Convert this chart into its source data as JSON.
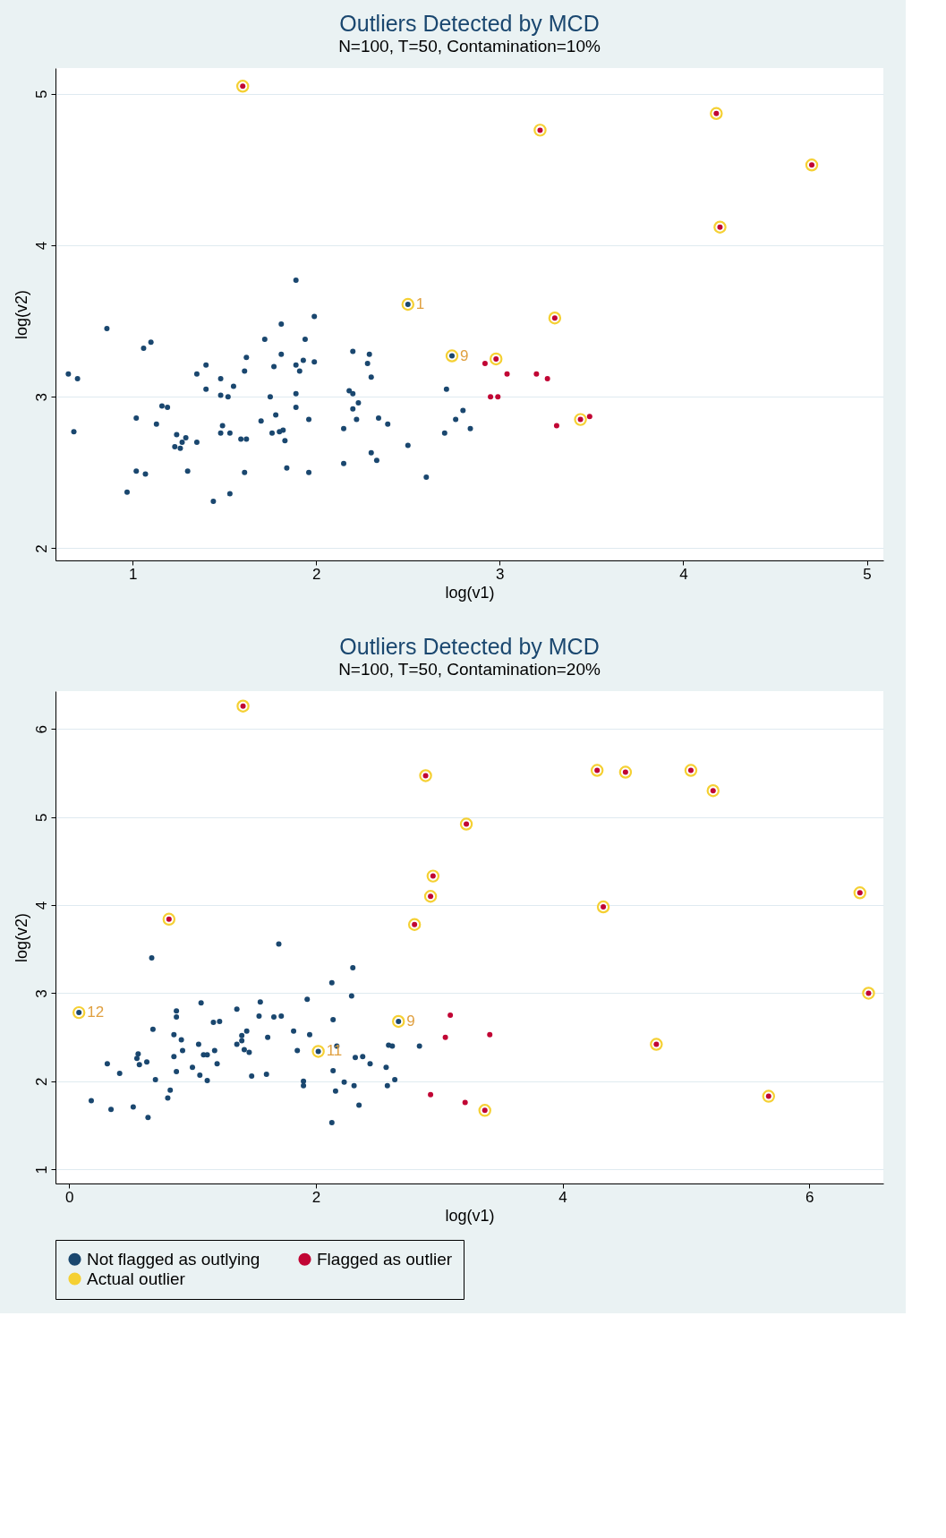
{
  "chart_data": [
    {
      "type": "scatter",
      "title": "Outliers Detected by MCD",
      "subtitle": "N=100, T=50, Contamination=10%",
      "xlabel": "log(v1)",
      "ylabel": "log(v2)",
      "xlim": [
        0.58,
        5.09
      ],
      "ylim": [
        1.92,
        5.17
      ],
      "xticks": [
        1,
        2,
        3,
        4,
        5
      ],
      "yticks": [
        2,
        3,
        4,
        5
      ],
      "grid": "y",
      "marker": "circle",
      "series": [
        {
          "color": "#1a476f",
          "x": [
            0.65,
            0.7,
            0.68,
            0.86,
            1.06,
            1.1,
            1.02,
            1.02,
            1.07,
            0.97,
            1.13,
            1.16,
            1.19,
            1.24,
            1.29,
            1.27,
            1.23,
            1.26,
            1.35,
            1.3,
            1.35,
            1.4,
            1.4,
            1.48,
            1.48,
            1.52,
            1.55,
            1.49,
            1.48,
            1.53,
            1.44,
            1.53,
            1.59,
            1.62,
            1.61,
            1.61,
            1.62,
            1.72,
            1.81,
            1.89,
            1.99,
            1.94,
            1.81,
            1.77,
            1.89,
            1.93,
            1.91,
            1.99,
            1.75,
            1.89,
            1.89,
            1.78,
            1.7,
            1.76,
            1.8,
            1.82,
            1.83,
            1.96,
            1.84,
            1.96,
            2.2,
            2.29,
            2.28,
            2.3,
            2.18,
            2.2,
            2.23,
            2.2,
            2.22,
            2.15,
            2.34,
            2.39,
            2.3,
            2.33,
            2.15,
            2.5,
            2.6,
            2.71,
            2.7,
            2.76,
            2.8,
            2.84,
            2.5,
            2.74
          ],
          "values": [
            3.15,
            3.12,
            2.77,
            3.45,
            3.32,
            3.36,
            2.86,
            2.51,
            2.49,
            2.37,
            2.82,
            2.94,
            2.93,
            2.75,
            2.73,
            2.7,
            2.67,
            2.66,
            2.7,
            2.51,
            3.15,
            3.21,
            3.05,
            3.12,
            3.01,
            3.0,
            3.07,
            2.81,
            2.76,
            2.76,
            2.31,
            2.36,
            2.72,
            2.72,
            2.5,
            3.17,
            3.26,
            3.38,
            3.48,
            3.77,
            3.53,
            3.38,
            3.28,
            3.2,
            3.21,
            3.24,
            3.17,
            3.23,
            3.0,
            3.02,
            2.93,
            2.88,
            2.84,
            2.76,
            2.77,
            2.78,
            2.71,
            2.85,
            2.53,
            2.5,
            3.3,
            3.28,
            3.22,
            3.13,
            3.04,
            3.02,
            2.96,
            2.92,
            2.85,
            2.79,
            2.86,
            2.82,
            2.63,
            2.58,
            2.56,
            2.68,
            2.47,
            3.05,
            2.76,
            2.85,
            2.91,
            2.79,
            3.61,
            3.27
          ]
        },
        {
          "color": "#c10534",
          "x": [
            2.92,
            3.04,
            2.95,
            2.99,
            3.2,
            3.26,
            3.31,
            3.49,
            2.98,
            3.22,
            4.18,
            4.7,
            4.2,
            3.3,
            3.44,
            1.6
          ],
          "values": [
            3.22,
            3.15,
            3.0,
            3.0,
            3.15,
            3.12,
            2.81,
            2.87,
            3.25,
            4.76,
            4.87,
            4.53,
            4.12,
            3.52,
            2.85,
            5.05
          ]
        },
        {
          "color": "#f5d033",
          "x": [
            2.98,
            3.22,
            4.18,
            4.7,
            4.2,
            3.3,
            3.44,
            1.6,
            2.5,
            2.74
          ],
          "values": [
            3.25,
            4.76,
            4.87,
            4.53,
            4.12,
            3.52,
            2.85,
            5.05,
            3.61,
            3.27
          ]
        }
      ],
      "annotations": [
        {
          "text": "1",
          "x": 2.5,
          "y": 3.61
        },
        {
          "text": "9",
          "x": 2.74,
          "y": 3.27
        }
      ]
    },
    {
      "type": "scatter",
      "title": "Outliers Detected by MCD",
      "subtitle": "N=100, T=50, Contamination=20%",
      "xlabel": "log(v1)",
      "ylabel": "log(v2)",
      "xlim": [
        -0.11,
        6.6
      ],
      "ylim": [
        0.84,
        6.43
      ],
      "xticks": [
        0,
        2,
        4,
        6
      ],
      "yticks": [
        1,
        2,
        3,
        4,
        5,
        6
      ],
      "grid": "y",
      "legend": "bottom",
      "marker": "circle",
      "series": [
        {
          "name": "Not flagged as outlying",
          "color": "#1a476f",
          "x": [
            0.18,
            0.34,
            0.52,
            0.64,
            0.31,
            0.41,
            0.56,
            0.55,
            0.57,
            0.63,
            0.68,
            0.67,
            0.7,
            0.8,
            0.82,
            0.85,
            0.87,
            0.87,
            0.91,
            0.92,
            0.85,
            0.87,
            1.0,
            1.05,
            1.06,
            1.07,
            1.09,
            1.12,
            1.12,
            1.18,
            1.2,
            1.17,
            1.22,
            1.36,
            1.36,
            1.4,
            1.4,
            1.44,
            1.42,
            1.46,
            1.48,
            1.54,
            1.55,
            1.6,
            1.61,
            1.66,
            1.72,
            1.7,
            1.82,
            1.85,
            1.93,
            1.95,
            1.9,
            1.9,
            2.13,
            2.14,
            2.17,
            2.14,
            2.16,
            2.13,
            2.23,
            2.3,
            2.29,
            2.32,
            2.31,
            2.35,
            2.38,
            2.44,
            2.57,
            2.58,
            2.64,
            2.59,
            2.62,
            2.84,
            0.08,
            2.02,
            2.67
          ],
          "values": [
            1.78,
            1.68,
            1.71,
            1.59,
            2.2,
            2.09,
            2.31,
            2.26,
            2.19,
            2.22,
            2.59,
            3.4,
            2.02,
            1.81,
            1.9,
            2.53,
            2.73,
            2.8,
            2.47,
            2.35,
            2.28,
            2.11,
            2.16,
            2.42,
            2.07,
            2.89,
            2.3,
            2.3,
            2.01,
            2.35,
            2.2,
            2.67,
            2.68,
            2.82,
            2.42,
            2.46,
            2.52,
            2.57,
            2.36,
            2.33,
            2.06,
            2.74,
            2.9,
            2.08,
            2.5,
            2.73,
            2.74,
            3.56,
            2.57,
            2.35,
            2.93,
            2.53,
            2.0,
            1.95,
            3.12,
            2.7,
            2.4,
            2.12,
            1.89,
            1.53,
            1.99,
            3.29,
            2.97,
            2.27,
            1.95,
            1.73,
            2.28,
            2.2,
            2.16,
            1.95,
            2.02,
            2.41,
            2.4,
            2.4,
            2.78,
            2.34,
            2.68
          ]
        },
        {
          "name": "Flagged as outlier",
          "color": "#c10534",
          "x": [
            3.09,
            3.05,
            3.41,
            2.93,
            3.21,
            1.41,
            0.81,
            2.89,
            3.22,
            2.95,
            2.93,
            2.8,
            3.37,
            4.28,
            4.51,
            5.04,
            5.22,
            4.33,
            6.41,
            6.48,
            4.76,
            5.67
          ],
          "values": [
            2.75,
            2.5,
            2.53,
            1.85,
            1.76,
            6.26,
            3.84,
            5.47,
            4.92,
            4.33,
            4.1,
            3.78,
            1.67,
            5.53,
            5.51,
            5.53,
            5.3,
            3.98,
            4.14,
            3.0,
            2.42,
            1.83
          ]
        },
        {
          "name": "Actual outlier",
          "color": "#f5d033",
          "x": [
            1.41,
            0.81,
            2.89,
            3.22,
            2.95,
            2.93,
            2.8,
            3.37,
            4.28,
            4.51,
            5.04,
            5.22,
            4.33,
            6.41,
            6.48,
            4.76,
            5.67,
            0.08,
            2.02,
            2.67
          ],
          "values": [
            6.26,
            3.84,
            5.47,
            4.92,
            4.33,
            4.1,
            3.78,
            1.67,
            5.53,
            5.51,
            5.53,
            5.3,
            3.98,
            4.14,
            3.0,
            2.42,
            1.83,
            2.78,
            2.34,
            2.68
          ]
        }
      ],
      "annotations": [
        {
          "text": "12",
          "x": 0.08,
          "y": 2.78
        },
        {
          "text": "11",
          "x": 2.02,
          "y": 2.34
        },
        {
          "text": "9",
          "x": 2.67,
          "y": 2.68
        }
      ]
    }
  ]
}
